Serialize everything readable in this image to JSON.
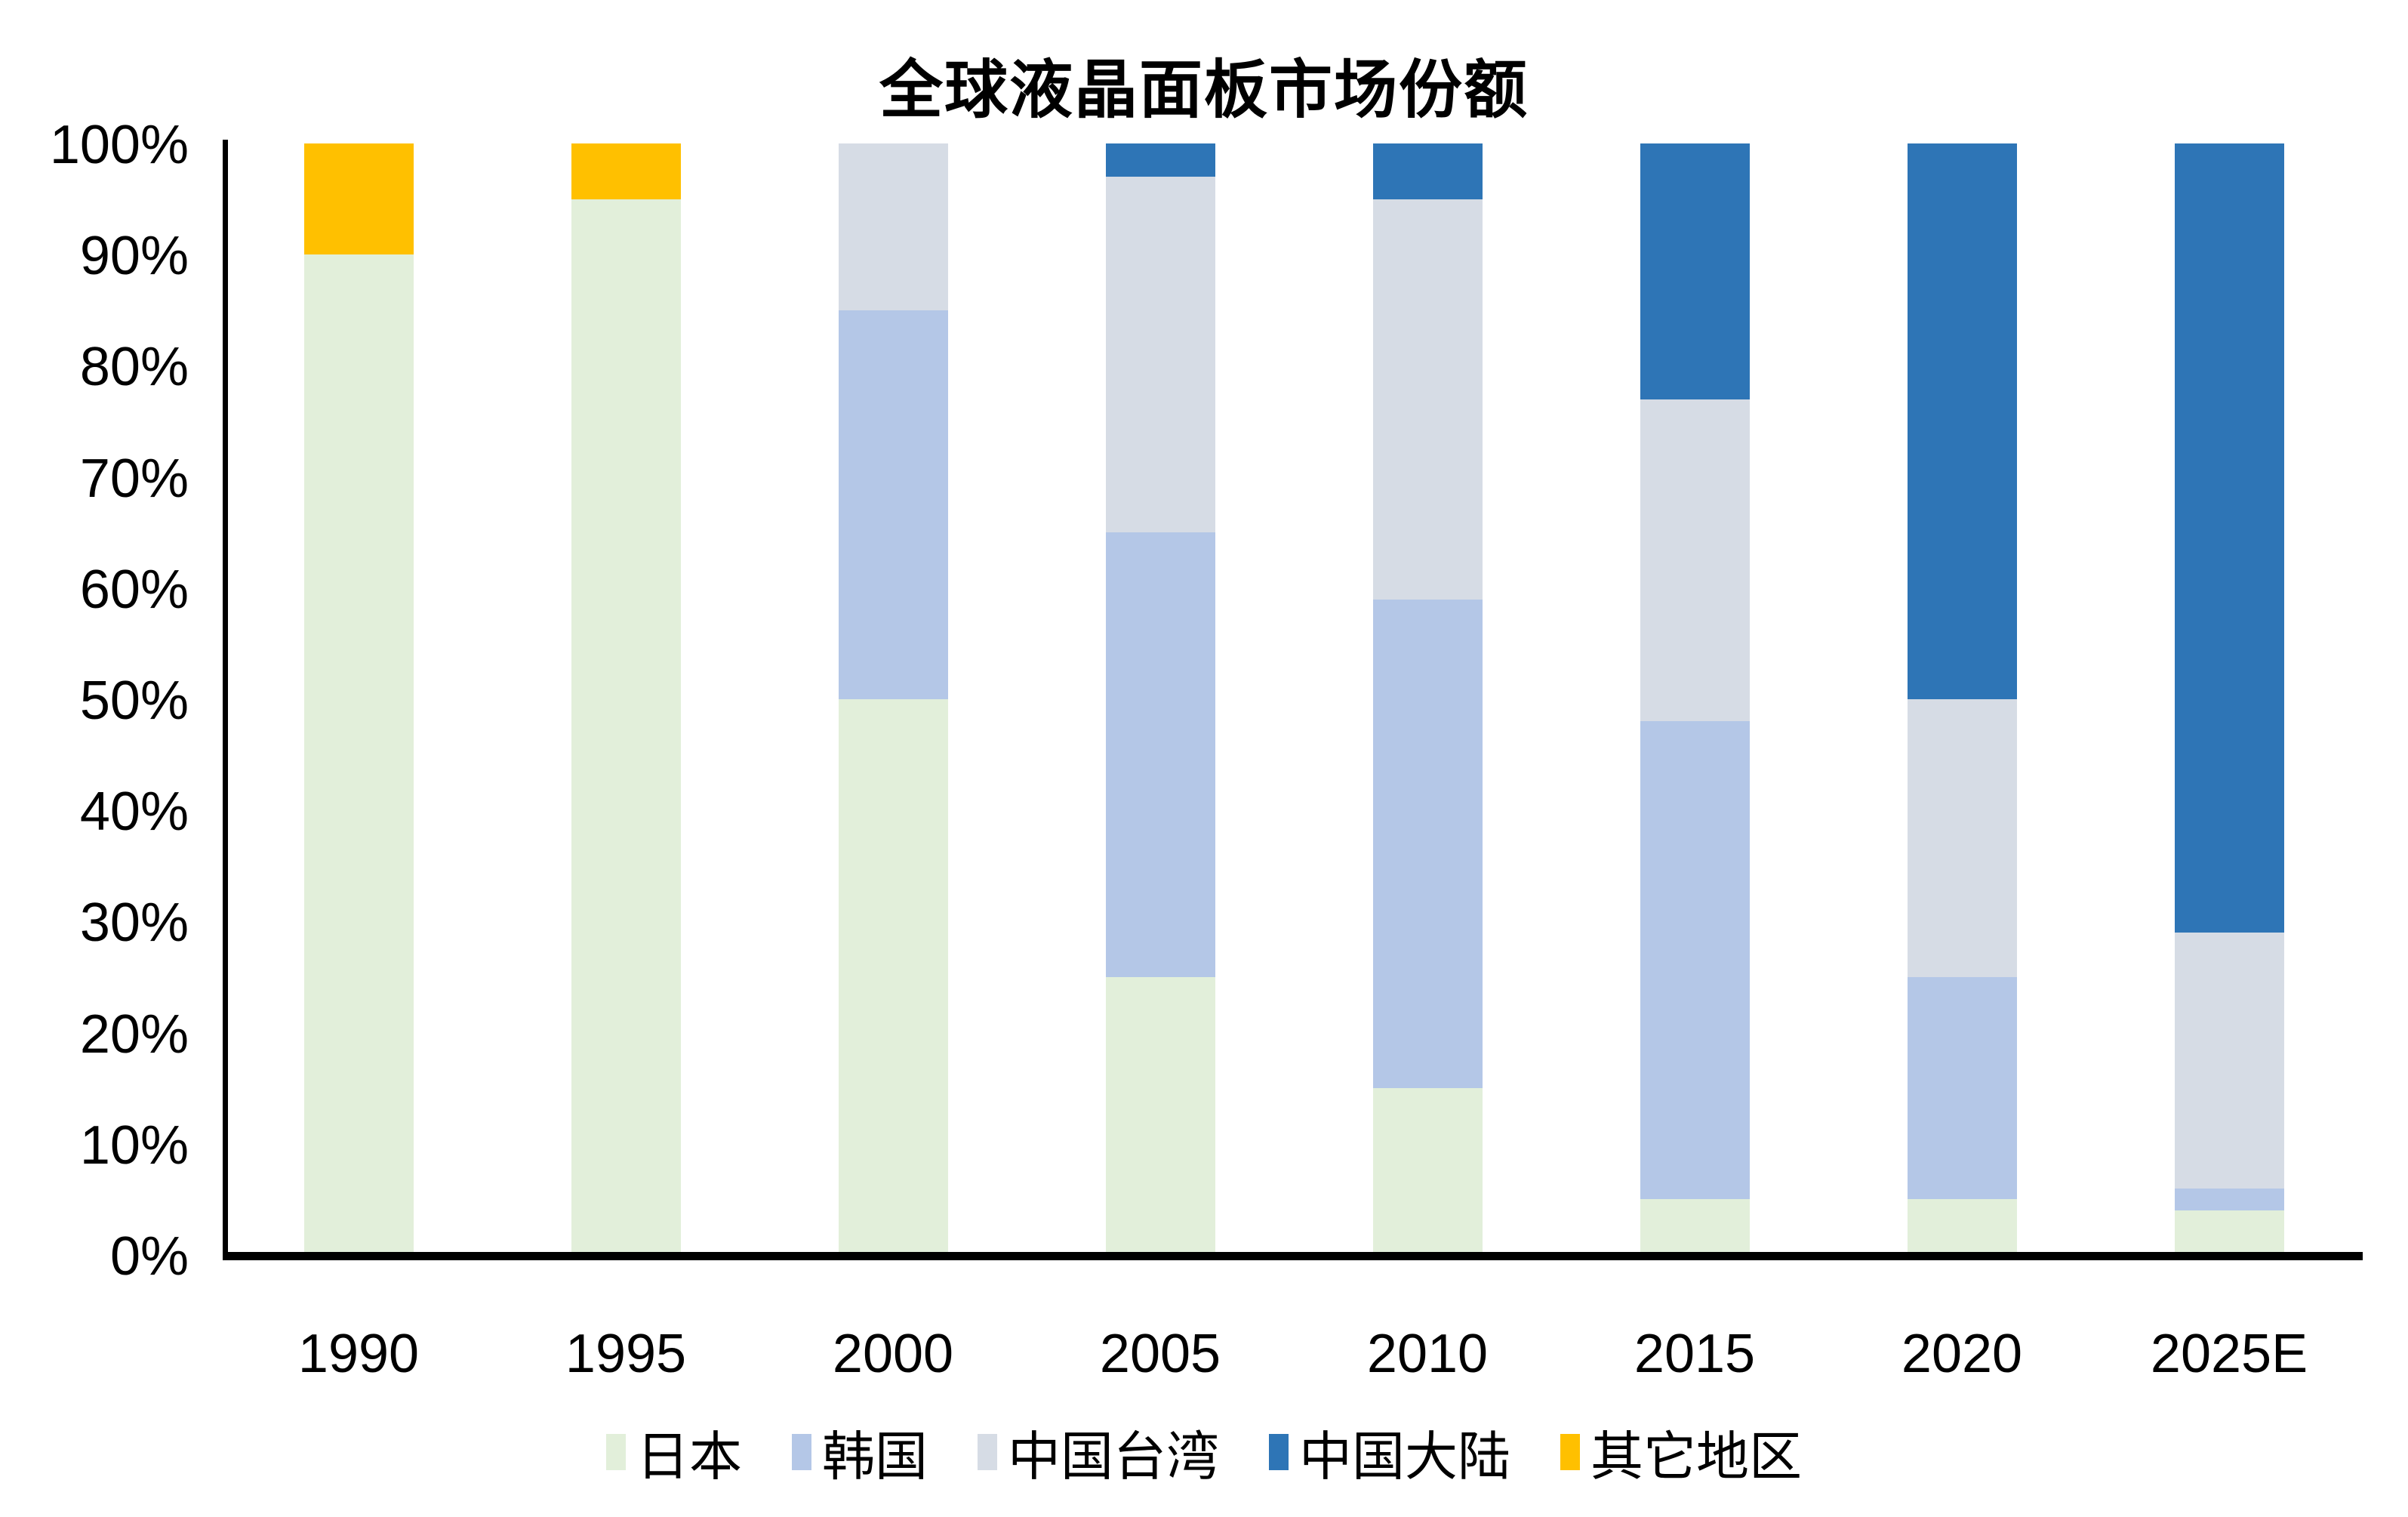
{
  "chart_data": {
    "type": "bar",
    "stacked": true,
    "title": "全球液晶面板市场份额",
    "categories": [
      "1990",
      "1995",
      "2000",
      "2005",
      "2010",
      "2015",
      "2020",
      "2025E"
    ],
    "series": [
      {
        "name": "日本",
        "color": "#E2EFDA",
        "values": [
          90,
          95,
          50,
          25,
          15,
          5,
          5,
          4
        ]
      },
      {
        "name": "韩国",
        "color": "#B4C7E7",
        "values": [
          0,
          0,
          35,
          40,
          44,
          43,
          20,
          2
        ]
      },
      {
        "name": "中国台湾",
        "color": "#D6DCE5",
        "values": [
          0,
          0,
          15,
          32,
          36,
          29,
          25,
          23
        ]
      },
      {
        "name": "中国大陆",
        "color": "#2E75B6",
        "values": [
          0,
          0,
          0,
          3,
          5,
          23,
          50,
          71
        ]
      },
      {
        "name": "其它地区",
        "color": "#FFC000",
        "values": [
          10,
          5,
          0,
          0,
          0,
          0,
          0,
          0
        ]
      }
    ],
    "y_ticks": [
      "100%",
      "90%",
      "80%",
      "70%",
      "60%",
      "50%",
      "40%",
      "30%",
      "20%",
      "10%",
      "0%"
    ],
    "ylim": [
      0,
      100
    ],
    "grid": false,
    "axis_color": "#000000",
    "legend_position": "bottom"
  }
}
